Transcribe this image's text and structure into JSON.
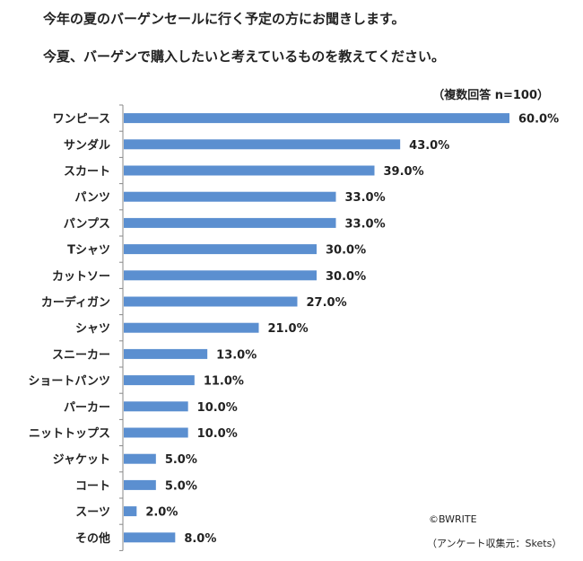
{
  "chart_data": {
    "type": "bar",
    "orientation": "horizontal",
    "title": "今年の夏のバーゲンセールに行く予定の方にお聞きします。",
    "subtitle": "今夏、バーゲンで購入したいと考えているものを教えてください。",
    "note": "（複数回答 n=100）",
    "categories": [
      "ワンピース",
      "サンダル",
      "スカート",
      "パンツ",
      "パンプス",
      "Tシャツ",
      "カットソー",
      "カーディガン",
      "シャツ",
      "スニーカー",
      "ショートパンツ",
      "パーカー",
      "ニットトップス",
      "ジャケット",
      "コート",
      "スーツ",
      "その他"
    ],
    "values": [
      60.0,
      43.0,
      39.0,
      33.0,
      33.0,
      30.0,
      30.0,
      27.0,
      21.0,
      13.0,
      11.0,
      10.0,
      10.0,
      5.0,
      5.0,
      2.0,
      8.0
    ],
    "value_labels": [
      "60.0%",
      "43.0%",
      "39.0%",
      "33.0%",
      "33.0%",
      "30.0%",
      "30.0%",
      "27.0%",
      "21.0%",
      "13.0%",
      "11.0%",
      "10.0%",
      "10.0%",
      "5.0%",
      "5.0%",
      "2.0%",
      "8.0%"
    ],
    "xlim": [
      0,
      60
    ],
    "bar_color": "#5b8fd0",
    "axis_color": "#888888",
    "grid": false,
    "legend": "none"
  },
  "credits": {
    "copyright": "©BWRITE",
    "source": "（アンケート収集元：Skets）"
  }
}
